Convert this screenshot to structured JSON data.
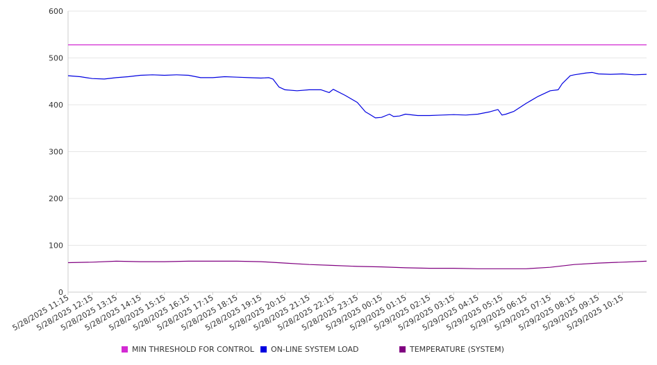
{
  "chart_data": {
    "type": "line",
    "ylim": [
      0,
      600
    ],
    "y_ticks": [
      "0",
      "100",
      "200",
      "300",
      "400",
      "500",
      "600"
    ],
    "grid": true,
    "legend_position": "bottom",
    "x_ticks": [
      "5/28/2025 11:15",
      "5/28/2025 12:15",
      "5/28/2025 13:15",
      "5/28/2025 14:15",
      "5/28/2025 15:15",
      "5/28/2025 16:15",
      "5/28/2025 17:15",
      "5/28/2025 18:15",
      "5/28/2025 19:15",
      "5/28/2025 20:15",
      "5/28/2025 21:15",
      "5/28/2025 22:15",
      "5/28/2025 23:15",
      "5/29/2025 00:15",
      "5/29/2025 01:15",
      "5/29/2025 02:15",
      "5/29/2025 03:15",
      "5/29/2025 04:15",
      "5/29/2025 05:15",
      "5/29/2025 06:15",
      "5/29/2025 07:15",
      "5/29/2025 08:15",
      "5/29/2025 09:15",
      "5/29/2025 10:15"
    ],
    "x_range": [
      "5/28/2025 11:15",
      "5/29/2025 11:15"
    ],
    "series": [
      {
        "name": "MIN THRESHOLD FOR CONTROL",
        "color": "#d32ad3",
        "x": [
          "5/28/2025 11:15",
          "5/29/2025 11:15"
        ],
        "values": [
          528,
          528
        ]
      },
      {
        "name": "ON-LINE SYSTEM LOAD",
        "color": "#0000e0",
        "x": [
          "5/28/2025 11:15",
          "5/28/2025 11:45",
          "5/28/2025 12:15",
          "5/28/2025 12:45",
          "5/28/2025 13:15",
          "5/28/2025 13:45",
          "5/28/2025 14:15",
          "5/28/2025 14:45",
          "5/28/2025 15:15",
          "5/28/2025 15:45",
          "5/28/2025 16:15",
          "5/28/2025 16:45",
          "5/28/2025 17:15",
          "5/28/2025 17:45",
          "5/28/2025 18:15",
          "5/28/2025 18:45",
          "5/28/2025 19:15",
          "5/28/2025 19:35",
          "5/28/2025 19:45",
          "5/28/2025 20:00",
          "5/28/2025 20:15",
          "5/28/2025 20:45",
          "5/28/2025 21:15",
          "5/28/2025 21:45",
          "5/28/2025 22:05",
          "5/28/2025 22:15",
          "5/28/2025 22:45",
          "5/28/2025 23:15",
          "5/28/2025 23:35",
          "5/28/2025 23:45",
          "5/29/2025 00:00",
          "5/29/2025 00:15",
          "5/29/2025 00:35",
          "5/29/2025 00:45",
          "5/29/2025 01:00",
          "5/29/2025 01:15",
          "5/29/2025 01:45",
          "5/29/2025 02:15",
          "5/29/2025 02:45",
          "5/29/2025 03:15",
          "5/29/2025 03:45",
          "5/29/2025 04:15",
          "5/29/2025 04:45",
          "5/29/2025 05:05",
          "5/29/2025 05:15",
          "5/29/2025 05:25",
          "5/29/2025 05:45",
          "5/29/2025 06:15",
          "5/29/2025 06:45",
          "5/29/2025 07:15",
          "5/29/2025 07:35",
          "5/29/2025 07:45",
          "5/29/2025 08:05",
          "5/29/2025 08:15",
          "5/29/2025 08:45",
          "5/29/2025 09:00",
          "5/29/2025 09:15",
          "5/29/2025 09:45",
          "5/29/2025 10:15",
          "5/29/2025 10:45",
          "5/29/2025 11:15"
        ],
        "values": [
          462,
          460,
          456,
          455,
          458,
          460,
          463,
          464,
          463,
          464,
          463,
          458,
          458,
          460,
          459,
          458,
          457,
          458,
          455,
          438,
          432,
          430,
          432,
          432,
          426,
          433,
          420,
          405,
          385,
          380,
          372,
          373,
          380,
          375,
          376,
          380,
          377,
          377,
          378,
          379,
          378,
          380,
          385,
          390,
          378,
          380,
          386,
          403,
          418,
          430,
          432,
          445,
          462,
          464,
          468,
          469,
          466,
          465,
          466,
          464,
          465
        ]
      },
      {
        "name": "TEMPERATURE (SYSTEM)",
        "color": "#800080",
        "x": [
          "5/28/2025 11:15",
          "5/28/2025 12:15",
          "5/28/2025 13:15",
          "5/28/2025 14:15",
          "5/28/2025 15:15",
          "5/28/2025 16:15",
          "5/28/2025 17:15",
          "5/28/2025 18:15",
          "5/28/2025 19:15",
          "5/28/2025 20:15",
          "5/28/2025 21:15",
          "5/28/2025 22:15",
          "5/28/2025 23:15",
          "5/29/2025 00:15",
          "5/29/2025 01:15",
          "5/29/2025 02:15",
          "5/29/2025 03:15",
          "5/29/2025 04:15",
          "5/29/2025 05:15",
          "5/29/2025 06:15",
          "5/29/2025 07:15",
          "5/29/2025 08:15",
          "5/29/2025 09:15",
          "5/29/2025 10:15",
          "5/29/2025 11:15"
        ],
        "values": [
          63,
          64,
          66,
          65,
          65,
          66,
          66,
          66,
          65,
          62,
          59,
          57,
          55,
          54,
          52,
          51,
          51,
          50,
          50,
          50,
          53,
          59,
          62,
          64,
          66
        ]
      }
    ]
  }
}
